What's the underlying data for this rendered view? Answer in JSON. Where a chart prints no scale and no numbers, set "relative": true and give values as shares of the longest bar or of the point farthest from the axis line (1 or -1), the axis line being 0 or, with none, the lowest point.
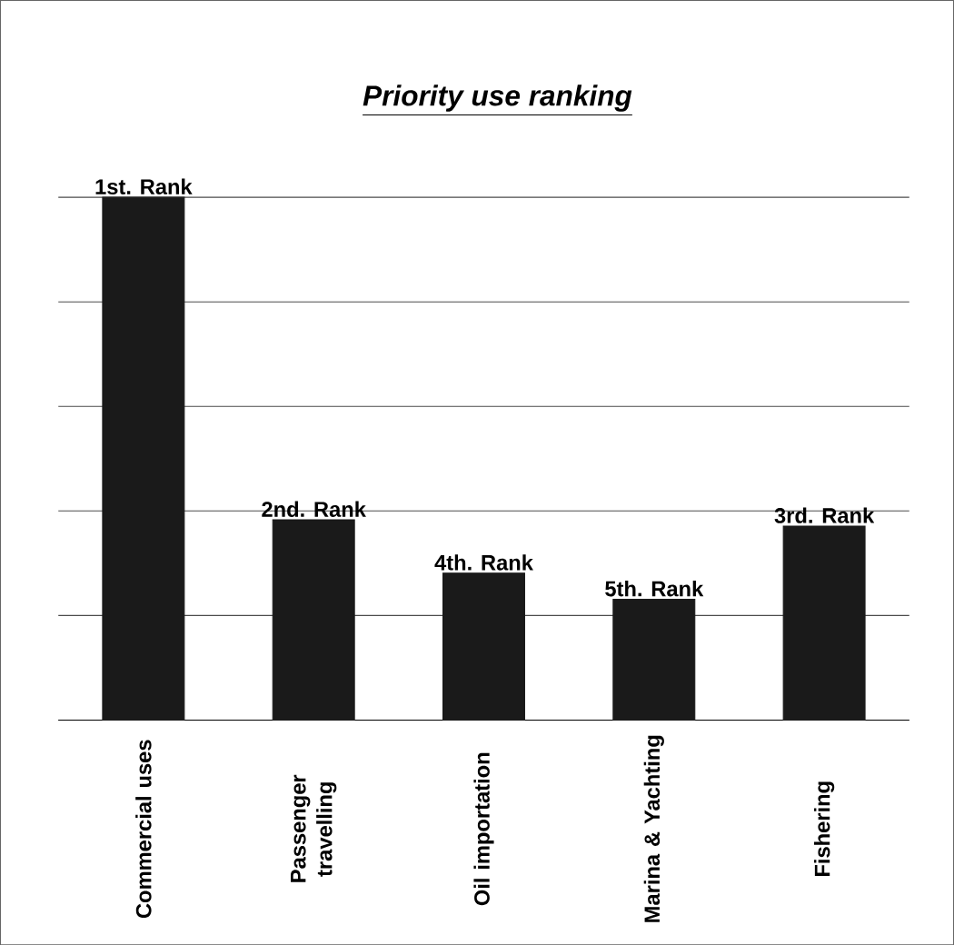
{
  "chart_data": {
    "type": "bar",
    "title": "Priority use ranking",
    "categories": [
      "Commercial uses",
      "Passenger travelling",
      "Oil importation",
      "Marina & Yachting",
      "Fishering"
    ],
    "values": [
      1,
      0.383,
      0.281,
      0.231,
      0.371
    ],
    "annotations": [
      {
        "text": "1st. Rank",
        "x": "Commercial uses",
        "y": 1
      },
      {
        "text": "2nd. Rank",
        "x": "Passenger travelling",
        "y": 0.383
      },
      {
        "text": "4th. Rank",
        "x": "Oil importation",
        "y": 0.281
      },
      {
        "text": "5th. Rank",
        "x": "Marina & Yachting",
        "y": 0.231
      },
      {
        "text": "3rd. Rank",
        "x": "Fishering",
        "y": 0.371
      }
    ],
    "color": "#1a1a1a",
    "relative": true,
    "grid": "y"
  }
}
